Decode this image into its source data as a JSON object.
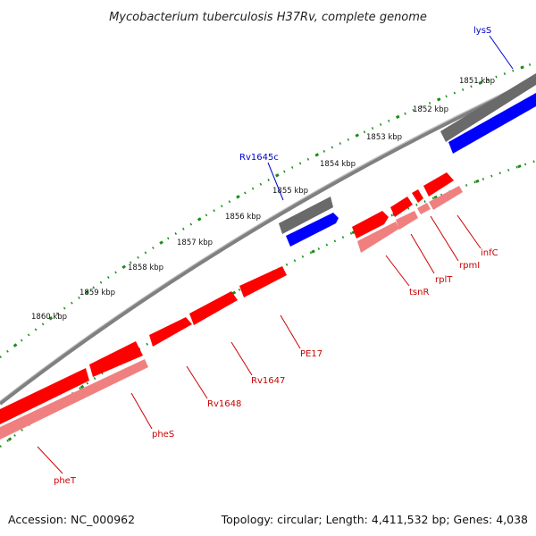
{
  "title": "Mycobacterium tuberculosis H37Rv, complete genome",
  "footer": {
    "accession": "Accession: NC_000962",
    "summary": "Topology: circular; Length: 4,411,532 bp; Genes: 4,038"
  },
  "colors": {
    "backbone": "#8c8c8c",
    "tick": "#1a8c1a",
    "gene_forward": "#ff0000",
    "gene_reverse_cds": "#f08080",
    "gene_gray": "#707070",
    "gene_blue": "#0000ff",
    "label_red": "#cc0000",
    "label_blue": "#0000cc"
  },
  "ruler_labels": [
    "1851 kbp",
    "1852 kbp",
    "1853 kbp",
    "1854 kbp",
    "1855 kbp",
    "1856 kbp",
    "1857 kbp",
    "1858 kbp",
    "1859 kbp",
    "1860 kbp"
  ],
  "gene_labels": [
    {
      "name": "lysS",
      "color": "blue"
    },
    {
      "name": "Rv1645c",
      "color": "blue"
    },
    {
      "name": "infC",
      "color": "red"
    },
    {
      "name": "rpmI",
      "color": "red"
    },
    {
      "name": "rplT",
      "color": "red"
    },
    {
      "name": "tsnR",
      "color": "red"
    },
    {
      "name": "PE17",
      "color": "red"
    },
    {
      "name": "Rv1647",
      "color": "red"
    },
    {
      "name": "Rv1648",
      "color": "red"
    },
    {
      "name": "pheS",
      "color": "red"
    },
    {
      "name": "pheT",
      "color": "red"
    }
  ]
}
